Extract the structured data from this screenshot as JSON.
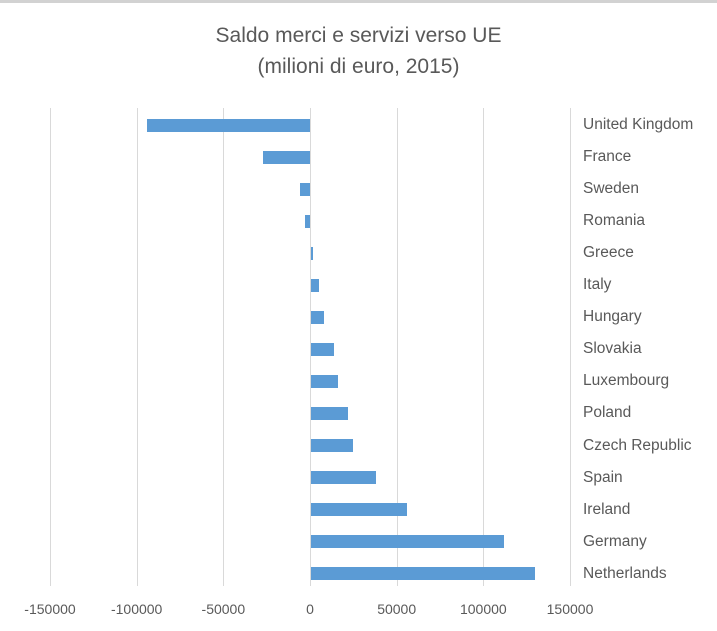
{
  "window": {
    "top_strip_color": "#d2d2d2",
    "background_color": "#ffffff"
  },
  "chart_data": {
    "type": "bar",
    "orientation": "horizontal",
    "title": "Saldo merci e servizi verso UE",
    "subtitle": "(milioni di euro, 2015)",
    "categories": [
      "United Kingdom",
      "France",
      "Sweden",
      "Romania",
      "Greece",
      "Italy",
      "Hungary",
      "Slovakia",
      "Luxembourg",
      "Poland",
      "Czech Republic",
      "Spain",
      "Ireland",
      "Germany",
      "Netherlands"
    ],
    "values": [
      -94000,
      -27000,
      -6000,
      -3000,
      2000,
      5000,
      8000,
      14000,
      16000,
      22000,
      25000,
      38000,
      56000,
      112000,
      130000
    ],
    "x_ticks": [
      -150000,
      -100000,
      -50000,
      0,
      50000,
      100000,
      150000
    ],
    "xlim": [
      -150000,
      150000
    ],
    "xlabel": "",
    "ylabel": "",
    "legend": "none",
    "grid": "vertical-only",
    "category_labels_position": "right",
    "bar_color": "#5b9bd5",
    "gridline_color": "#d9d9d9",
    "text_color": "#595959"
  }
}
